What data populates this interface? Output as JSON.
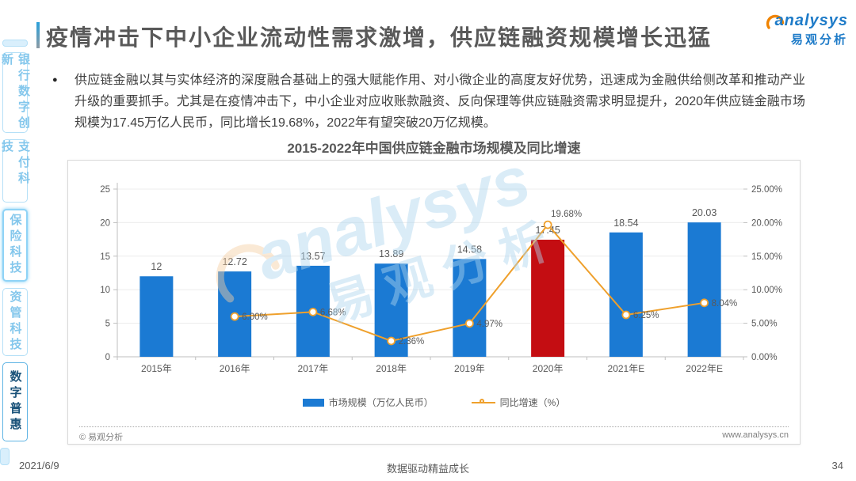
{
  "page": {
    "title": "疫情冲击下中小企业流动性需求激增，供应链融资规模增长迅猛",
    "bullet_text": "供应链金融以其与实体经济的深度融合基础上的强大赋能作用、对小微企业的高度友好优势，迅速成为金融供给侧改革和推动产业升级的重要抓手。尤其是在疫情冲击下，中小企业对应收账款融资、反向保理等供应链融资需求明显提升，2020年供应链金融市场规模为17.45万亿人民币，同比增长19.68%，2022年有望突破20万亿规模。",
    "bullet_glyph": "●",
    "date": "2021/6/9",
    "slogan": "数据驱动精益成长",
    "page_number": "34"
  },
  "logo": {
    "en": "analysys",
    "cn": "易观分析"
  },
  "watermark": {
    "en": "analysys",
    "cn": "易观分析"
  },
  "sidebar": {
    "items": [
      {
        "label": "银行数字创新"
      },
      {
        "label": "支付科技"
      },
      {
        "label": "保险科技"
      },
      {
        "label": "资管科技"
      },
      {
        "label": "数字普惠"
      }
    ],
    "active_item": "数字普惠"
  },
  "chart_card": {
    "source_left": "© 易观分析",
    "source_right": "www.analysys.cn"
  },
  "chart_data": {
    "type": "bar+line combo",
    "title": "2015-2022年中国供应链金融市场规模及同比增速",
    "categories": [
      "2015年",
      "2016年",
      "2017年",
      "2018年",
      "2019年",
      "2020年",
      "2021年E",
      "2022年E"
    ],
    "series": [
      {
        "name": "市场规模（万亿人民币）",
        "type": "bar",
        "axis": "left",
        "values": [
          12,
          12.72,
          13.57,
          13.89,
          14.58,
          17.45,
          18.54,
          20.03
        ]
      },
      {
        "name": "同比增速（%）",
        "type": "line",
        "axis": "right",
        "values": [
          null,
          6.0,
          6.68,
          2.36,
          4.97,
          19.68,
          6.25,
          8.04
        ],
        "labels": [
          null,
          "6.00%",
          "6.68%",
          "2.36%",
          "4.97%",
          "19.68%",
          "6.25%",
          "8.04%"
        ]
      }
    ],
    "left_axis": {
      "min": 0,
      "max": 25,
      "ticks": [
        "0",
        "5",
        "10",
        "15",
        "20",
        "25"
      ]
    },
    "right_axis": {
      "min": 0,
      "max": 25,
      "ticks": [
        "0.00%",
        "5.00%",
        "10.00%",
        "15.00%",
        "20.00%",
        "25.00%"
      ]
    },
    "bar_color": "#1b7ad3",
    "bar_highlight_color": "#c40d12",
    "bar_highlight_index": 5,
    "line_color": "#efa02c",
    "legend_position": "bottom",
    "grid": true
  }
}
